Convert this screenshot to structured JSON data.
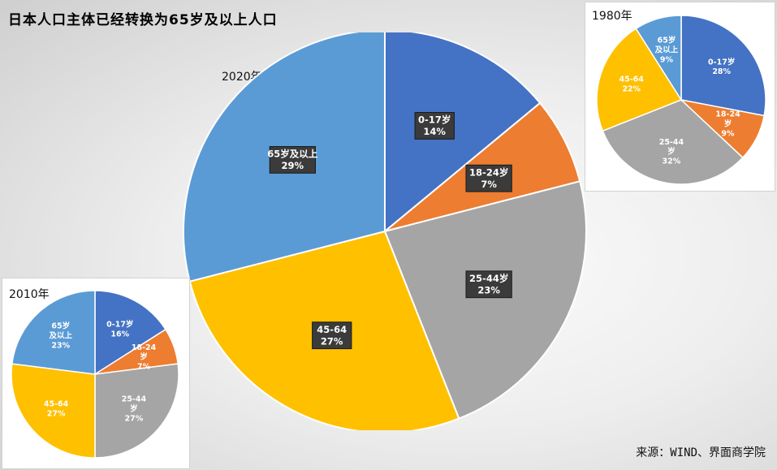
{
  "title": "日本人口主体已经转换为65岁及以上人口",
  "source": "来源：WIND、界面商学院",
  "colors": {
    "0-17": "#4472C4",
    "18-24": "#ED7D31",
    "25-44": "#A5A5A5",
    "45-64": "#FFC000",
    "65plus": "#5B9BD5",
    "label_box": "#3b3b3b"
  },
  "chart_data": [
    {
      "type": "pie",
      "title": "2020年",
      "slices": [
        {
          "label": "0-17岁",
          "value": 14,
          "pct": "14%",
          "color": "#4472C4"
        },
        {
          "label": "18-24岁",
          "value": 7,
          "pct": "7%",
          "color": "#ED7D31"
        },
        {
          "label": "25-44岁",
          "value": 23,
          "pct": "23%",
          "color": "#A5A5A5"
        },
        {
          "label": "45-64",
          "value": 27,
          "pct": "27%",
          "color": "#FFC000"
        },
        {
          "label": "65岁及以上",
          "value": 29,
          "pct": "29%",
          "color": "#5B9BD5"
        }
      ]
    },
    {
      "type": "pie",
      "title": "1980年",
      "slices": [
        {
          "label": "0-17岁",
          "value": 28,
          "pct": "28%",
          "color": "#4472C4"
        },
        {
          "label": "18-24岁",
          "value": 9,
          "pct": "9%",
          "color": "#ED7D31"
        },
        {
          "label": "25-44岁",
          "value": 32,
          "pct": "32%",
          "color": "#A5A5A5"
        },
        {
          "label": "45-64",
          "value": 22,
          "pct": "22%",
          "color": "#FFC000"
        },
        {
          "label": "65岁及以上",
          "value": 9,
          "pct": "9%",
          "color": "#5B9BD5"
        }
      ]
    },
    {
      "type": "pie",
      "title": "2010年",
      "slices": [
        {
          "label": "0-17岁",
          "value": 16,
          "pct": "16%",
          "color": "#4472C4"
        },
        {
          "label": "18-24岁",
          "value": 7,
          "pct": "7%",
          "color": "#ED7D31"
        },
        {
          "label": "25-44岁",
          "value": 27,
          "pct": "27%",
          "color": "#A5A5A5"
        },
        {
          "label": "45-64",
          "value": 27,
          "pct": "27%",
          "color": "#FFC000"
        },
        {
          "label": "65岁及以上",
          "value": 23,
          "pct": "23%",
          "color": "#5B9BD5"
        }
      ]
    }
  ]
}
